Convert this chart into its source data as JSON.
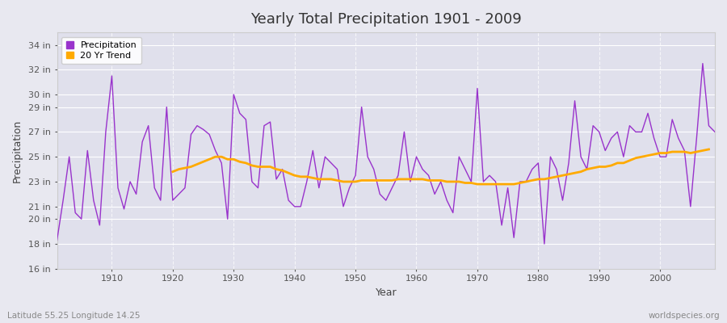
{
  "title": "Yearly Total Precipitation 1901 - 2009",
  "xlabel": "Year",
  "ylabel": "Precipitation",
  "subtitle_left": "Latitude 55.25 Longitude 14.25",
  "subtitle_right": "worldspecies.org",
  "line_color": "#9933cc",
  "trend_color": "#ffaa00",
  "bg_outer": "#e8e8f0",
  "bg_inner": "#e0e0ec",
  "ylim": [
    16,
    35
  ],
  "yticks": [
    16,
    18,
    20,
    21,
    23,
    25,
    27,
    29,
    30,
    32,
    34
  ],
  "xlim": [
    1901,
    2009
  ],
  "xticks": [
    1910,
    1920,
    1930,
    1940,
    1950,
    1960,
    1970,
    1980,
    1990,
    2000
  ],
  "years": [
    1901,
    1902,
    1903,
    1904,
    1905,
    1906,
    1907,
    1908,
    1909,
    1910,
    1911,
    1912,
    1913,
    1914,
    1915,
    1916,
    1917,
    1918,
    1919,
    1920,
    1921,
    1922,
    1923,
    1924,
    1925,
    1926,
    1927,
    1928,
    1929,
    1930,
    1931,
    1932,
    1933,
    1934,
    1935,
    1936,
    1937,
    1938,
    1939,
    1940,
    1941,
    1942,
    1943,
    1944,
    1945,
    1946,
    1947,
    1948,
    1949,
    1950,
    1951,
    1952,
    1953,
    1954,
    1955,
    1956,
    1957,
    1958,
    1959,
    1960,
    1961,
    1962,
    1963,
    1964,
    1965,
    1966,
    1967,
    1968,
    1969,
    1970,
    1971,
    1972,
    1973,
    1974,
    1975,
    1976,
    1977,
    1978,
    1979,
    1980,
    1981,
    1982,
    1983,
    1984,
    1985,
    1986,
    1987,
    1988,
    1989,
    1990,
    1991,
    1992,
    1993,
    1994,
    1995,
    1996,
    1997,
    1998,
    1999,
    2000,
    2001,
    2002,
    2003,
    2004,
    2005,
    2006,
    2007,
    2008,
    2009
  ],
  "precip": [
    18.3,
    21.5,
    25.0,
    20.5,
    20.0,
    25.5,
    21.5,
    19.5,
    27.0,
    31.5,
    22.5,
    20.8,
    23.0,
    22.0,
    26.2,
    27.5,
    22.5,
    21.5,
    29.0,
    21.5,
    22.0,
    22.5,
    26.8,
    27.5,
    27.2,
    26.8,
    25.5,
    24.5,
    20.0,
    30.0,
    28.5,
    28.0,
    23.0,
    22.5,
    27.5,
    27.8,
    23.2,
    24.0,
    21.5,
    21.0,
    21.0,
    23.0,
    25.5,
    22.5,
    25.0,
    24.5,
    24.0,
    21.0,
    22.5,
    23.5,
    29.0,
    25.0,
    24.0,
    22.0,
    21.5,
    22.5,
    23.5,
    27.0,
    23.0,
    25.0,
    24.0,
    23.5,
    22.0,
    23.0,
    21.5,
    20.5,
    25.0,
    24.0,
    23.0,
    30.5,
    23.0,
    23.5,
    23.0,
    19.5,
    22.5,
    18.5,
    23.0,
    23.0,
    24.0,
    24.5,
    18.0,
    25.0,
    24.0,
    21.5,
    24.5,
    29.5,
    25.0,
    24.0,
    27.5,
    27.0,
    25.5,
    26.5,
    27.0,
    25.0,
    27.5,
    27.0,
    27.0,
    28.5,
    26.5,
    25.0,
    25.0,
    28.0,
    26.5,
    25.5,
    21.0,
    26.5,
    32.5,
    27.5,
    27.0
  ],
  "trend": [
    null,
    null,
    null,
    null,
    null,
    null,
    null,
    null,
    null,
    null,
    null,
    null,
    null,
    null,
    null,
    null,
    null,
    null,
    null,
    23.8,
    24.0,
    24.1,
    24.2,
    24.4,
    24.6,
    24.8,
    25.0,
    25.0,
    24.8,
    24.8,
    24.6,
    24.5,
    24.3,
    24.2,
    24.2,
    24.2,
    24.0,
    23.9,
    23.7,
    23.5,
    23.4,
    23.4,
    23.3,
    23.2,
    23.2,
    23.2,
    23.1,
    23.0,
    23.0,
    23.0,
    23.1,
    23.1,
    23.1,
    23.1,
    23.1,
    23.1,
    23.2,
    23.2,
    23.2,
    23.2,
    23.2,
    23.1,
    23.1,
    23.1,
    23.0,
    23.0,
    23.0,
    22.9,
    22.9,
    22.8,
    22.8,
    22.8,
    22.8,
    22.8,
    22.8,
    22.8,
    22.9,
    23.0,
    23.1,
    23.2,
    23.2,
    23.3,
    23.4,
    23.5,
    23.6,
    23.7,
    23.8,
    24.0,
    24.1,
    24.2,
    24.2,
    24.3,
    24.5,
    24.5,
    24.7,
    24.9,
    25.0,
    25.1,
    25.2,
    25.3,
    25.3,
    25.4,
    25.4,
    25.4,
    25.3,
    25.4,
    25.5,
    25.6,
    null
  ]
}
